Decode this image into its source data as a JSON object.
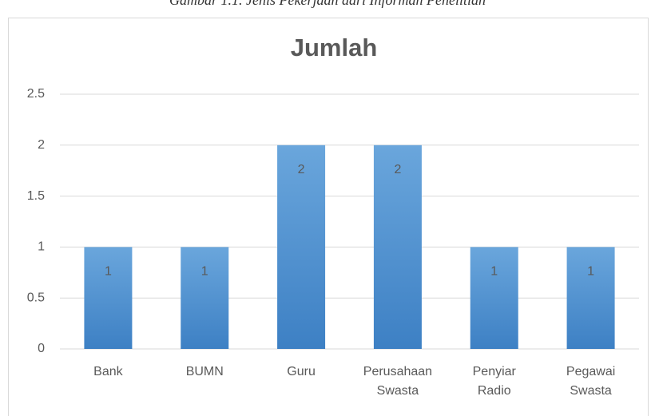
{
  "caption": "Gambar 1.1. Jenis Pekerjaan dari Informan Penelitian",
  "chart_data": {
    "type": "bar",
    "title": "Jumlah",
    "categories": [
      "Bank",
      "BUMN",
      "Guru",
      "Perusahaan Swasta",
      "Penyiar Radio",
      "Pegawai Swasta"
    ],
    "values": [
      1,
      1,
      2,
      2,
      1,
      1
    ],
    "color": "#5b9bd5",
    "ylim": [
      0,
      2.5
    ],
    "yticks": [
      0,
      0.5,
      1,
      1.5,
      2,
      2.5
    ],
    "grid": true
  }
}
